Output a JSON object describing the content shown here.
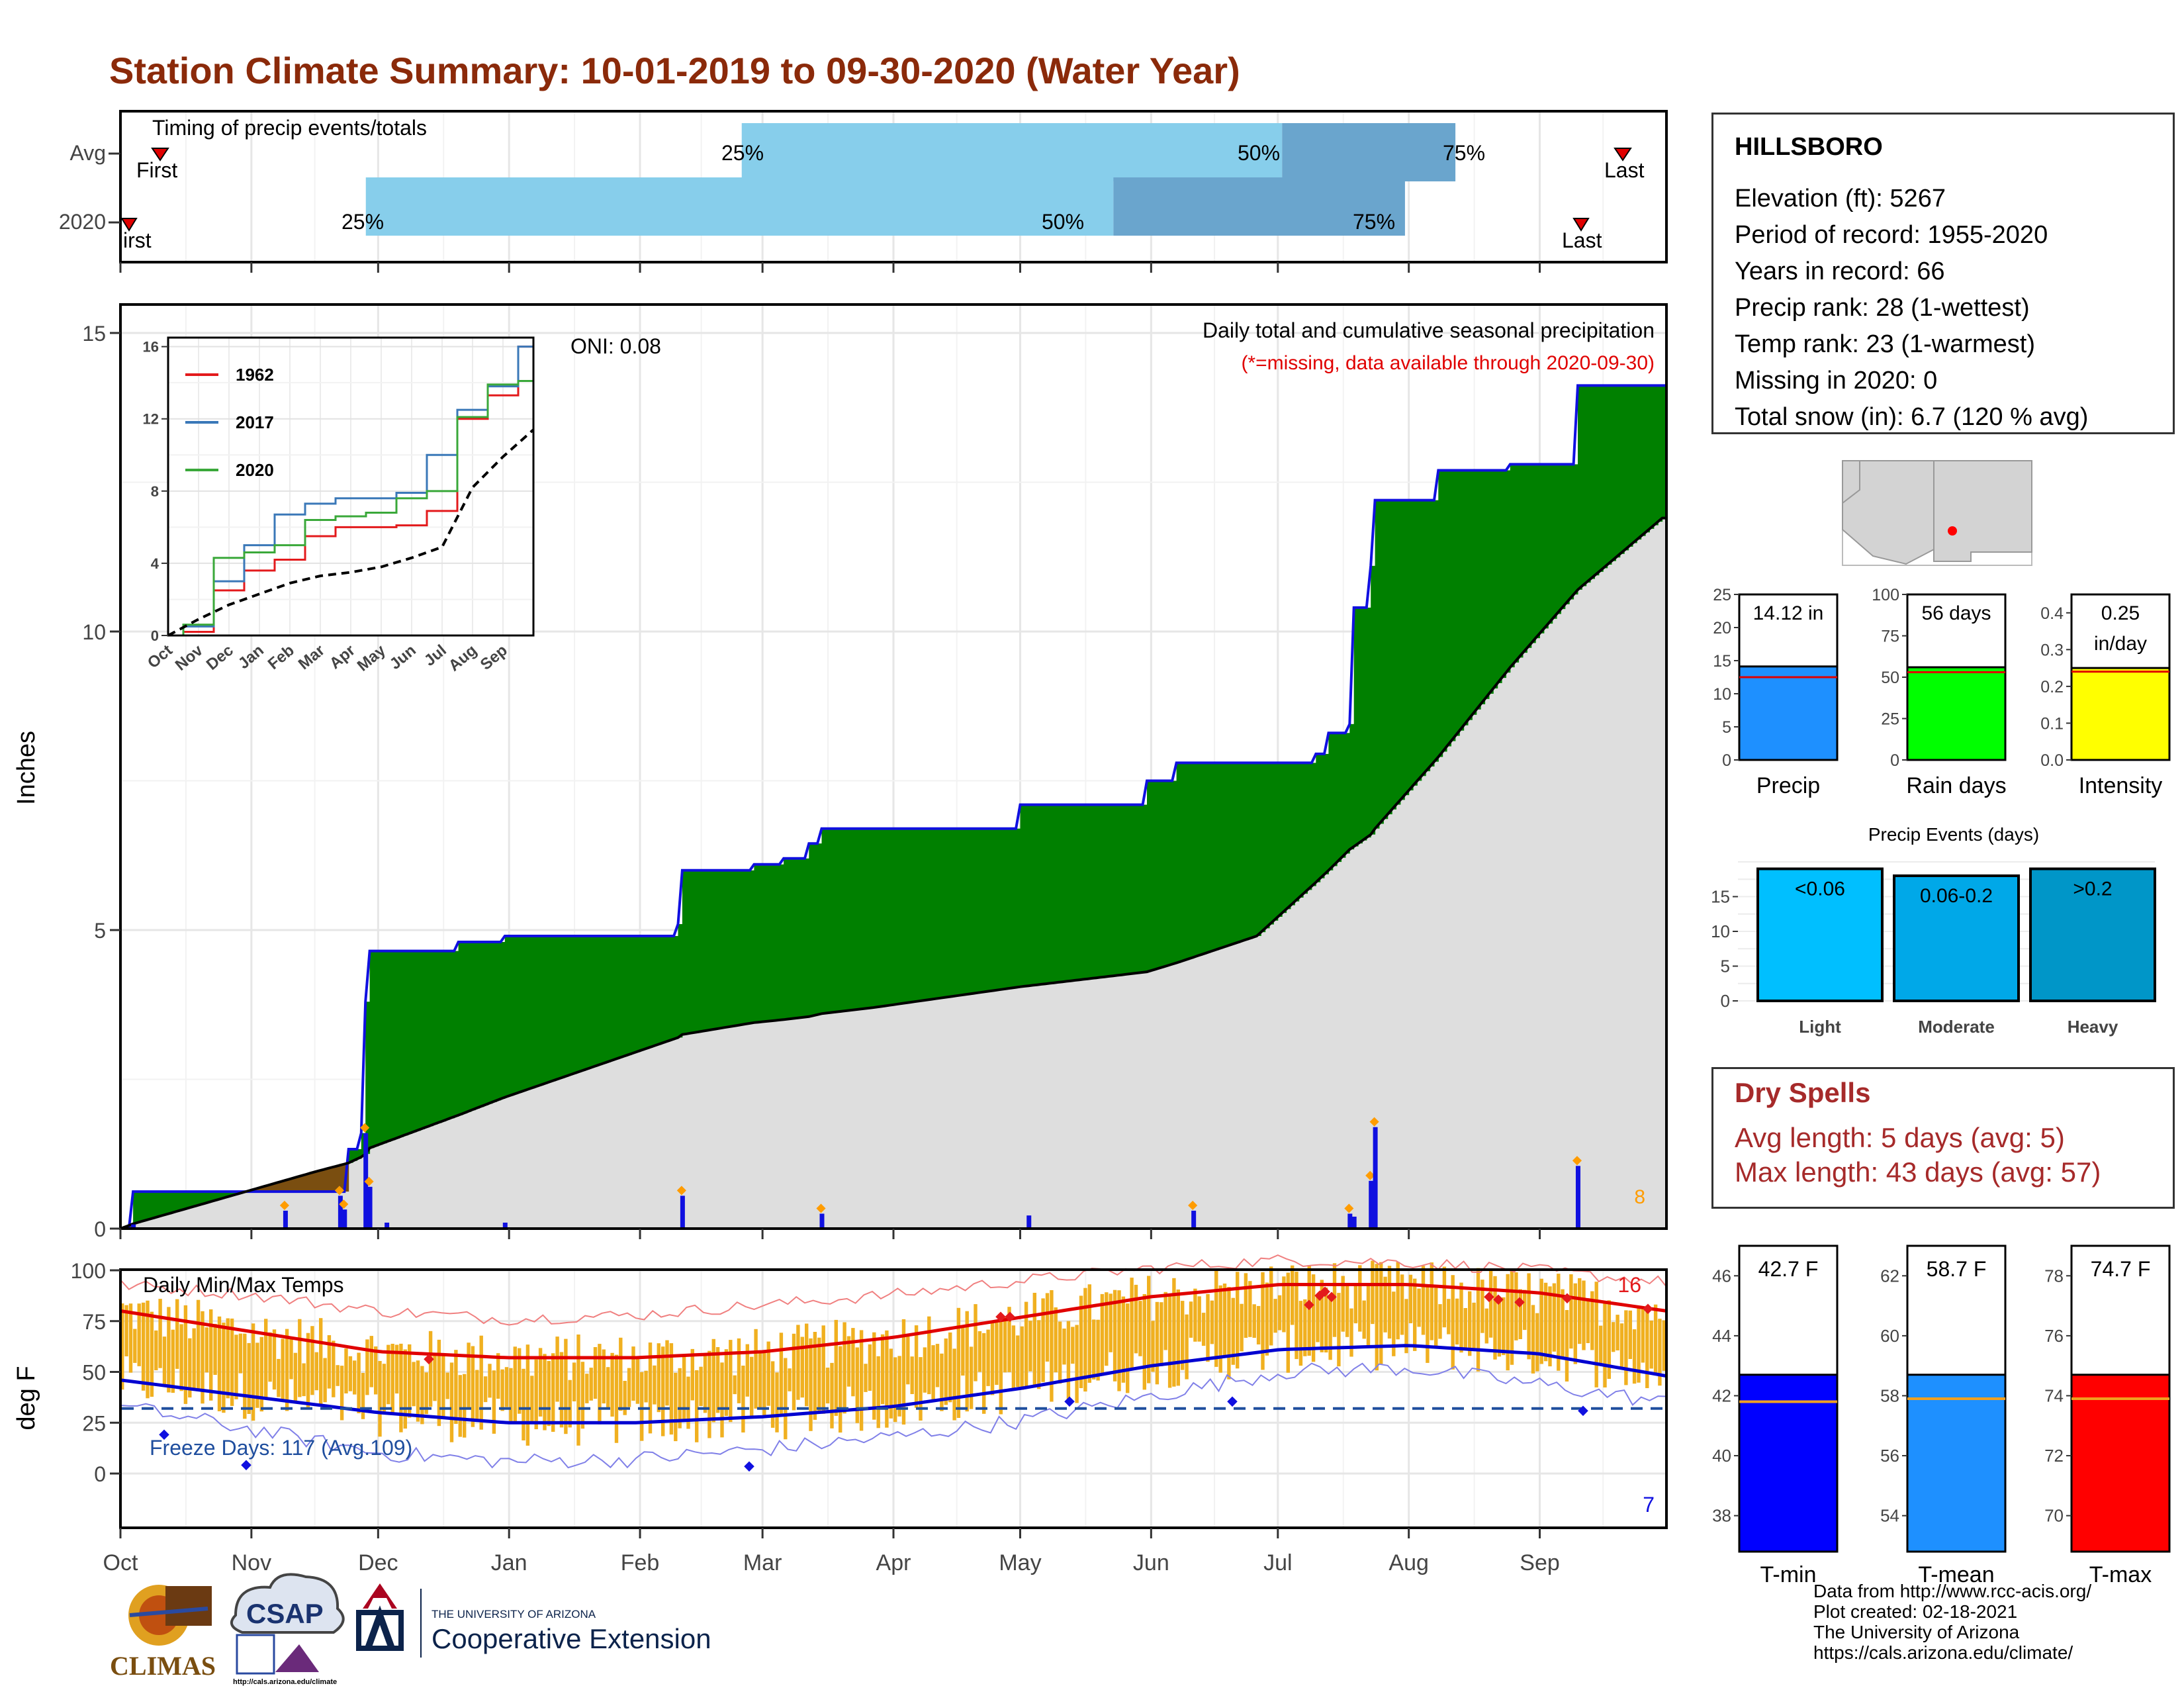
{
  "title": "Station Climate Summary: 10-01-2019 to 09-30-2020 (Water Year)",
  "colors": {
    "title": "#8b2a0a",
    "bar_light": "#87ceeb",
    "bar_dark": "#6aa5cd",
    "green": "#008000",
    "brown": "#7a4e10",
    "gray_fill": "#dedede",
    "blue": "#1010e0",
    "orange": "#ff9c00",
    "temp_bar": "#f0b020",
    "red": "#e31a1c",
    "dry_spell": "#a62a2a"
  },
  "timing": {
    "title": "Timing of precip events/totals",
    "row_labels": [
      "Avg",
      "2020"
    ],
    "first_label": "First",
    "first_label_2020": "irst",
    "last_label": "Last",
    "pct_labels": [
      "25%",
      "50%",
      "75%"
    ]
  },
  "months": [
    "Oct",
    "Nov",
    "Dec",
    "Jan",
    "Feb",
    "Mar",
    "Apr",
    "May",
    "Jun",
    "Jul",
    "Aug",
    "Sep"
  ],
  "precip_panel": {
    "ylabel": "Inches",
    "yticks": [
      "0",
      "5",
      "10",
      "15"
    ],
    "oni": "ONI: 0.08",
    "legend_title": "Daily total and cumulative seasonal precipitation",
    "missing_note": "(*=missing, data available through 2020-09-30)",
    "event_count_label": "8"
  },
  "inset": {
    "series": [
      "1962",
      "2017",
      "2020"
    ],
    "yticks": [
      "0",
      "4",
      "8",
      "12",
      "16"
    ],
    "months": [
      "Oct",
      "Nov",
      "Dec",
      "Jan",
      "Feb",
      "Mar",
      "Apr",
      "May",
      "Jun",
      "Jul",
      "Aug",
      "Sep"
    ]
  },
  "temp_panel": {
    "title": "Daily Min/Max Temps",
    "ylabel": "deg F",
    "yticks": [
      "0",
      "25",
      "50",
      "75",
      "100"
    ],
    "freeze_label": "Freeze Days: 117 (Avg.109)",
    "hot_count": "16",
    "cold_count": "7"
  },
  "station": {
    "name": "HILLSBORO",
    "lines": [
      "Elevation (ft): 5267",
      "Period of record: 1955-2020",
      "Years in record: 66",
      "Precip rank: 28 (1-wettest)",
      "Temp rank: 23 (1-warmest)",
      "Missing in 2020: 0",
      "Total snow (in): 6.7 (120 % avg)"
    ]
  },
  "precip_bars": {
    "panels": [
      {
        "label": "Precip",
        "value_text": "14.12 in",
        "value": 14.12,
        "avg": 12.5,
        "ymax": 25,
        "ticks": [
          "0",
          "5",
          "10",
          "15",
          "20",
          "25"
        ],
        "color": "#1e90ff"
      },
      {
        "label": "Rain days",
        "value_text": "56 days",
        "value": 56,
        "avg": 53,
        "ymax": 100,
        "ticks": [
          "0",
          "25",
          "50",
          "75",
          "100"
        ],
        "color": "#00ff00"
      },
      {
        "label": "Intensity",
        "value_text": "0.25 in/day",
        "value": 0.25,
        "avg": 0.24,
        "ymax": 0.45,
        "ticks": [
          "0.0",
          "0.1",
          "0.2",
          "0.3",
          "0.4"
        ],
        "color": "#ffff00"
      }
    ]
  },
  "precip_events": {
    "title": "Precip Events (days)",
    "categories": [
      "Light",
      "Moderate",
      "Heavy"
    ],
    "labels": [
      "<0.06",
      "0.06-0.2",
      ">0.2"
    ],
    "values": [
      19,
      18,
      19
    ],
    "ticks": [
      "0",
      "5",
      "10",
      "15"
    ],
    "colors": [
      "#00bfff",
      "#00a8e8",
      "#0096c8"
    ]
  },
  "dry_spells": {
    "title": "Dry Spells",
    "avg_length": "Avg length: 5 days (avg: 5)",
    "max_length": "Max length: 43 days (avg: 57)"
  },
  "temp_bars": {
    "panels": [
      {
        "label": "T-min",
        "value_text": "42.7 F",
        "value": 42.7,
        "avg": 41.8,
        "ymin": 36.8,
        "ymax": 47,
        "ticks": [
          "38",
          "40",
          "42",
          "44",
          "46"
        ],
        "color": "#0000ff"
      },
      {
        "label": "T-mean",
        "value_text": "58.7 F",
        "value": 58.7,
        "avg": 57.9,
        "ymin": 52.8,
        "ymax": 63,
        "ticks": [
          "54",
          "56",
          "58",
          "60",
          "62"
        ],
        "color": "#1e90ff"
      },
      {
        "label": "T-max",
        "value_text": "74.7 F",
        "value": 74.7,
        "avg": 73.9,
        "ymin": 68.8,
        "ymax": 79,
        "ticks": [
          "70",
          "72",
          "74",
          "76",
          "78"
        ],
        "color": "#ff0000"
      }
    ]
  },
  "credits": {
    "lines": [
      "Data from http://www.rcc-acis.org/",
      "Plot created: 02-18-2021",
      "The University of Arizona",
      "https://cals.arizona.edu/climate/"
    ],
    "logo_climas": "CLIMAS",
    "logo_csap": "CSAP",
    "logo_csap_url": "http://cals.arizona.edu/climate",
    "ua_small": "THE UNIVERSITY OF ARIZONA",
    "ua_large": "Cooperative Extension"
  },
  "chart_data": [
    {
      "type": "bar",
      "title": "Timing of precip events/totals",
      "categories": [
        "Avg",
        "2020"
      ],
      "series": [
        {
          "name": "25%",
          "values": [
            "Feb 25",
            "Nov 28"
          ]
        },
        {
          "name": "50%",
          "values": [
            "Jul 02",
            "May 23"
          ]
        },
        {
          "name": "75%",
          "values": [
            "Aug 12",
            "Jul 31"
          ]
        }
      ],
      "first_events": [
        "Oct 10",
        "Oct 01"
      ],
      "last_events": [
        "Sep 26",
        "Sep 10"
      ]
    },
    {
      "type": "area",
      "title": "Daily total and cumulative seasonal precipitation",
      "xlabel": "",
      "ylabel": "Inches",
      "ylim": [
        0,
        15.3
      ],
      "x": [
        "2019-10-01",
        "2019-10-04",
        "2019-11-16",
        "2019-11-24",
        "2019-11-27",
        "2019-11-28",
        "2019-11-29",
        "2019-12-20",
        "2019-12-31",
        "2020-02-10",
        "2020-02-11",
        "2020-02-28",
        "2020-03-06",
        "2020-03-12",
        "2020-03-15",
        "2020-03-27",
        "2020-05-01",
        "2020-05-31",
        "2020-06-07",
        "2020-06-26",
        "2020-07-10",
        "2020-07-13",
        "2020-07-18",
        "2020-07-19",
        "2020-07-23",
        "2020-07-24",
        "2020-08-08",
        "2020-08-25",
        "2020-09-10",
        "2020-09-30"
      ],
      "series": [
        {
          "name": "2020",
          "values": [
            0.0,
            0.62,
            0.62,
            1.33,
            1.6,
            3.8,
            4.65,
            4.8,
            4.9,
            5.1,
            6.0,
            6.1,
            6.2,
            6.45,
            6.7,
            6.7,
            7.1,
            7.5,
            7.8,
            7.8,
            7.95,
            8.3,
            8.45,
            10.4,
            11.1,
            12.2,
            12.7,
            12.8,
            14.12,
            14.12
          ]
        },
        {
          "name": "Average",
          "values": [
            0.0,
            0.08,
            0.95,
            1.1,
            1.2,
            1.25,
            1.35,
            1.9,
            2.2,
            3.2,
            3.25,
            3.45,
            3.5,
            3.55,
            3.6,
            3.7,
            4.05,
            4.3,
            4.45,
            4.9,
            5.8,
            6.0,
            6.35,
            6.4,
            6.6,
            6.7,
            7.9,
            9.4,
            10.7,
            11.9
          ]
        }
      ],
      "daily_totals": {
        "x": [
          "2019-10-04",
          "2019-11-09",
          "2019-11-22",
          "2019-11-23",
          "2019-11-28",
          "2019-11-29",
          "2019-12-03",
          "2019-12-31",
          "2020-02-11",
          "2020-03-15",
          "2020-05-03",
          "2020-06-11",
          "2020-07-18",
          "2020-07-19",
          "2020-07-23",
          "2020-07-24",
          "2020-09-10"
        ],
        "values": [
          0.07,
          0.3,
          0.55,
          0.32,
          1.6,
          0.7,
          0.1,
          0.1,
          0.55,
          0.25,
          0.22,
          0.3,
          0.25,
          0.2,
          0.8,
          1.7,
          1.05
        ]
      }
    },
    {
      "type": "line",
      "title": "",
      "ylim": [
        0,
        16.5
      ],
      "categories": [
        "Oct",
        "Nov",
        "Dec",
        "Jan",
        "Feb",
        "Mar",
        "Apr",
        "May",
        "Jun",
        "Jul",
        "Aug",
        "Sep",
        "end"
      ],
      "series": [
        {
          "name": "1962",
          "values": [
            0,
            0.2,
            2.5,
            3.6,
            4.2,
            5.5,
            6.0,
            6.0,
            6.1,
            6.9,
            12.0,
            13.3,
            16.0
          ]
        },
        {
          "name": "2017",
          "values": [
            0,
            0.5,
            3.0,
            5.0,
            6.7,
            7.3,
            7.6,
            7.6,
            7.9,
            10.0,
            12.5,
            13.8,
            16.0
          ]
        },
        {
          "name": "2020",
          "values": [
            0,
            0.6,
            4.3,
            4.6,
            5.0,
            6.4,
            6.6,
            6.8,
            7.6,
            8.0,
            12.1,
            13.9,
            14.1
          ]
        },
        {
          "name": "",
          "values": [
            0,
            0.9,
            1.7,
            2.3,
            2.9,
            3.3,
            3.5,
            3.8,
            4.3,
            4.9,
            8.2,
            9.9,
            11.4
          ]
        }
      ]
    },
    {
      "type": "line",
      "title": "Daily Min/Max Temps",
      "ylabel": "deg F",
      "ylim": [
        -18,
        110
      ],
      "categories": [
        "Oct",
        "Nov",
        "Dec",
        "Jan",
        "Feb",
        "Mar",
        "Apr",
        "May",
        "Jun",
        "Jul",
        "Aug",
        "Sep",
        "end"
      ],
      "series": [
        {
          "name": "",
          "values": [
            80,
            70,
            60,
            57,
            57,
            60,
            67,
            77,
            87,
            93,
            93,
            89,
            80
          ]
        },
        {
          "name": "",
          "values": [
            46,
            38,
            30,
            25,
            25,
            28,
            33,
            42,
            53,
            61,
            63,
            59,
            48
          ]
        },
        {
          "name": "",
          "values": [
            93,
            88,
            80,
            76,
            78,
            83,
            88,
            95,
            101,
            105,
            104,
            100,
            94
          ]
        },
        {
          "name": "",
          "values": [
            33,
            22,
            10,
            6,
            7,
            12,
            18,
            26,
            38,
            50,
            52,
            44,
            35
          ]
        }
      ],
      "freeze_threshold": 32
    },
    {
      "type": "bar",
      "title": "",
      "categories": [
        "Precip",
        "Rain days",
        "Intensity"
      ],
      "values": [
        14.12,
        56,
        0.25
      ]
    },
    {
      "type": "bar",
      "title": "Precip Events (days)",
      "categories": [
        "Light",
        "Moderate",
        "Heavy"
      ],
      "values": [
        19,
        18,
        19
      ],
      "ylim": [
        0,
        20
      ]
    },
    {
      "type": "bar",
      "title": "",
      "categories": [
        "T-min",
        "T-mean",
        "T-max"
      ],
      "values": [
        42.7,
        58.7,
        74.7
      ]
    }
  ]
}
